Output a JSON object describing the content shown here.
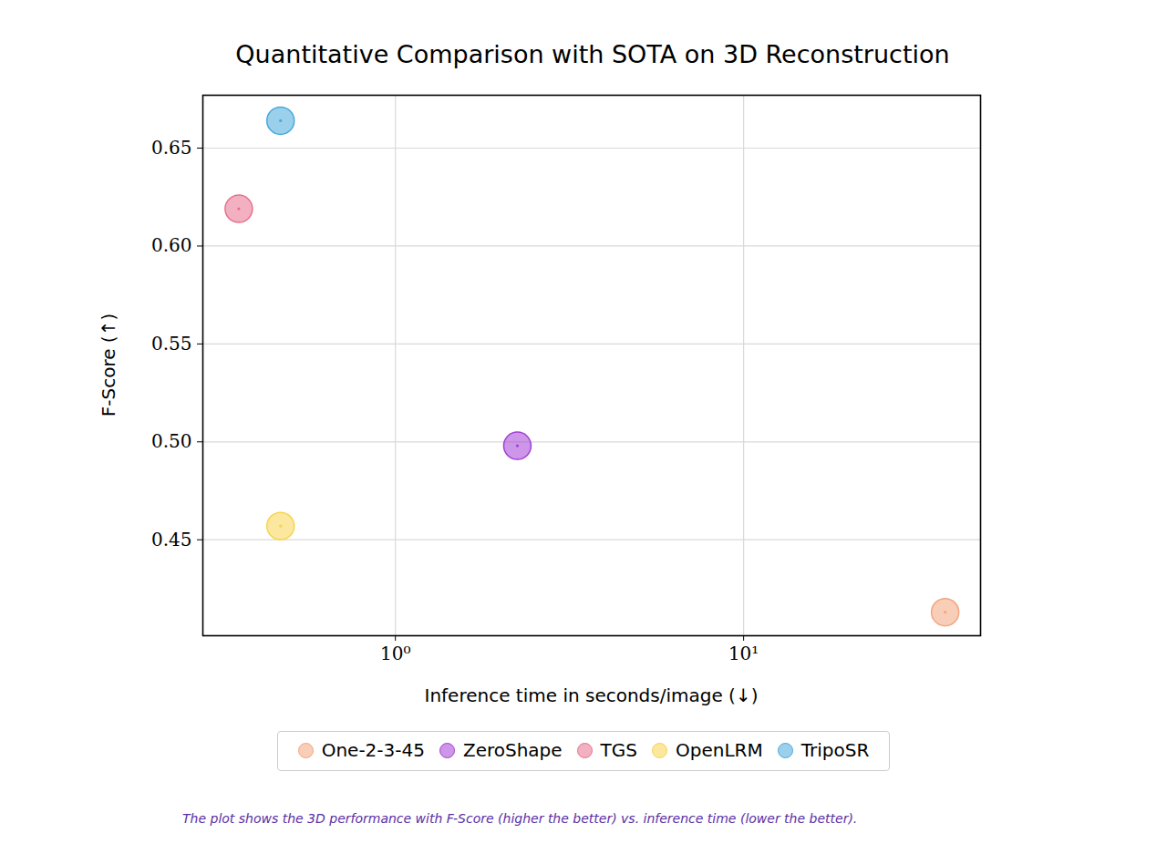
{
  "chart_data": {
    "type": "scatter",
    "title": "Quantitative Comparison with SOTA on 3D Reconstruction",
    "x_label": "Inference time in seconds/image (↓)",
    "y_label": "F-Score (↑)",
    "caption": "The plot shows the 3D performance with F-Score (higher the better) vs. inference time (lower the better).",
    "series": [
      {
        "name": "One-2-3-45",
        "color": "#f4a57e",
        "x": [
          37.9
        ],
        "values": [
          0.413
        ]
      },
      {
        "name": "ZeroShape",
        "color": "#a43fd6",
        "x": [
          2.24
        ],
        "values": [
          0.498
        ]
      },
      {
        "name": "TGS",
        "color": "#e8708c",
        "x": [
          0.355
        ],
        "values": [
          0.619
        ]
      },
      {
        "name": "OpenLRM",
        "color": "#f7d44c",
        "x": [
          0.468
        ],
        "values": [
          0.457
        ]
      },
      {
        "name": "TripoSR",
        "color": "#48a9dc",
        "x": [
          0.468
        ],
        "values": [
          0.664
        ]
      }
    ],
    "xlim": [
      0.28,
      47.9
    ],
    "ylim": [
      0.401,
      0.677
    ],
    "xticks": [
      {
        "value": 1,
        "label": "10⁰"
      },
      {
        "value": 10,
        "label": "10¹"
      }
    ],
    "yticks": [
      0.45,
      {
        "value": 0.5,
        "label": "0.50"
      },
      0.55,
      {
        "value": 0.6,
        "label": "0.60"
      },
      0.65
    ],
    "log": "x",
    "grid": true,
    "legend": "bottom",
    "marker": "circle"
  }
}
